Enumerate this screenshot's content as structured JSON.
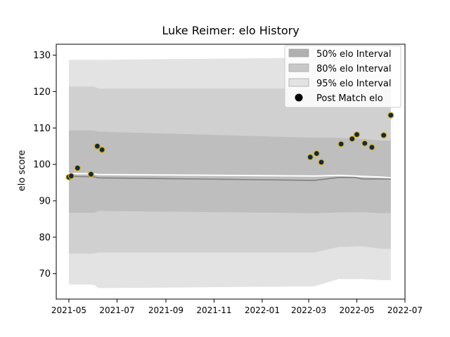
{
  "chart_data": {
    "type": "area",
    "title": "Luke Reimer: elo History",
    "xlabel": "",
    "ylabel": "elo score",
    "xlim": [
      "2021-04-15",
      "2022-07-01"
    ],
    "ylim": [
      63,
      133
    ],
    "x_ticks": [
      "2021-05",
      "2021-07",
      "2021-09",
      "2021-11",
      "2022-01",
      "2022-03",
      "2022-05",
      "2022-07"
    ],
    "y_ticks": [
      70,
      80,
      90,
      100,
      110,
      120,
      130
    ],
    "legend": {
      "position": "top-right",
      "entries": [
        {
          "label": "50% elo Interval",
          "color": "#b0b0b0"
        },
        {
          "label": "80% elo Interval",
          "color": "#c8c8c8"
        },
        {
          "label": "95% elo Interval",
          "color": "#e3e3e3"
        },
        {
          "label": "Post Match elo",
          "color": "#000000"
        }
      ]
    },
    "series": [
      {
        "name": "95% elo Interval",
        "color": "#e3e3e3",
        "x": [
          "2021-05-01",
          "2021-06-01",
          "2021-06-08",
          "2022-03-08",
          "2022-04-08",
          "2022-05-08",
          "2022-06-01",
          "2022-06-13"
        ],
        "lower": [
          67.0,
          67.0,
          66.0,
          66.5,
          68.5,
          68.5,
          68.2,
          68.2
        ],
        "upper": [
          128.7,
          128.7,
          128.7,
          129.3,
          129.3,
          129.3,
          129.3,
          129.3
        ]
      },
      {
        "name": "80% elo Interval",
        "color": "#d0d0d0",
        "x": [
          "2021-05-01",
          "2021-06-01",
          "2021-06-08",
          "2022-03-08",
          "2022-04-08",
          "2022-05-08",
          "2022-06-01",
          "2022-06-13"
        ],
        "lower": [
          75.5,
          75.5,
          75.8,
          75.8,
          77.3,
          77.5,
          76.8,
          76.8
        ],
        "upper": [
          121.4,
          121.4,
          120.8,
          120.8,
          120.8,
          120.8,
          120.8,
          120.8
        ]
      },
      {
        "name": "50% elo Interval",
        "color": "#bebebe",
        "x": [
          "2021-05-01",
          "2021-06-01",
          "2021-06-08",
          "2022-03-08",
          "2022-04-08",
          "2022-05-08",
          "2022-06-01",
          "2022-06-13"
        ],
        "lower": [
          86.7,
          86.7,
          87.2,
          86.6,
          86.8,
          86.9,
          86.6,
          86.6
        ],
        "upper": [
          109.3,
          109.3,
          109.0,
          107.3,
          107.3,
          107.0,
          106.5,
          106.5
        ]
      },
      {
        "name": "median",
        "color": "#808080",
        "x": [
          "2021-05-01",
          "2021-06-01",
          "2021-06-08",
          "2022-03-08",
          "2022-04-08",
          "2022-04-28",
          "2022-05-08",
          "2022-06-01",
          "2022-06-13"
        ],
        "values": [
          96.7,
          96.6,
          96.3,
          95.6,
          96.4,
          96.4,
          96.0,
          96.0,
          96.0
        ]
      },
      {
        "name": "mean",
        "color": "#ffffff",
        "x": [
          "2021-05-01",
          "2021-06-01",
          "2021-06-08",
          "2022-03-08",
          "2022-04-08",
          "2022-05-08",
          "2022-06-01",
          "2022-06-13"
        ],
        "values": [
          97.5,
          97.4,
          97.2,
          96.8,
          97.0,
          96.7,
          96.5,
          96.3
        ]
      },
      {
        "name": "Post Match elo",
        "color": "#0d2b45",
        "edge_color": "#e0b010",
        "x": [
          "2021-05-01",
          "2021-05-04",
          "2021-05-12",
          "2021-05-29",
          "2021-06-06",
          "2021-06-12",
          "2022-03-03",
          "2022-03-11",
          "2022-03-17",
          "2022-04-11",
          "2022-04-25",
          "2022-05-01",
          "2022-05-11",
          "2022-05-20",
          "2022-06-04",
          "2022-06-13"
        ],
        "values": [
          96.5,
          96.8,
          99.0,
          97.3,
          105.0,
          104.0,
          102.0,
          103.0,
          100.6,
          105.6,
          107.0,
          108.2,
          105.8,
          104.7,
          108.0,
          113.5
        ]
      }
    ]
  }
}
